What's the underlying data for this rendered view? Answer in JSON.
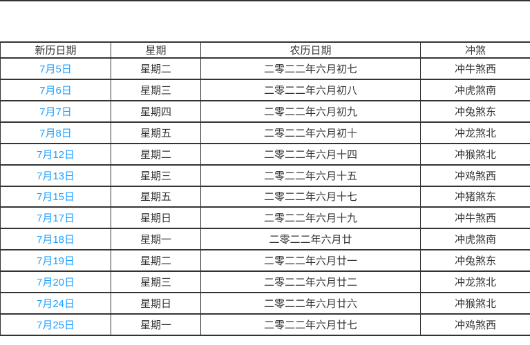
{
  "colors": {
    "accent": "#1e9fff",
    "text": "#333333",
    "border": "#333333",
    "background": "#ffffff"
  },
  "chart_data": {
    "type": "table",
    "title": "",
    "columns": [
      "新历日期",
      "星期",
      "农历日期",
      "冲煞"
    ],
    "rows": [
      [
        "7月5日",
        "星期二",
        "二零二二年六月初七",
        "冲牛煞西"
      ],
      [
        "7月6日",
        "星期三",
        "二零二二年六月初八",
        "冲虎煞南"
      ],
      [
        "7月7日",
        "星期四",
        "二零二二年六月初九",
        "冲兔煞东"
      ],
      [
        "7月8日",
        "星期五",
        "二零二二年六月初十",
        "冲龙煞北"
      ],
      [
        "7月12日",
        "星期二",
        "二零二二年六月十四",
        "冲猴煞北"
      ],
      [
        "7月13日",
        "星期三",
        "二零二二年六月十五",
        "冲鸡煞西"
      ],
      [
        "7月15日",
        "星期五",
        "二零二二年六月十七",
        "冲猪煞东"
      ],
      [
        "7月17日",
        "星期日",
        "二零二二年六月十九",
        "冲牛煞西"
      ],
      [
        "7月18日",
        "星期一",
        "二零二二年六月廿",
        "冲虎煞南"
      ],
      [
        "7月19日",
        "星期二",
        "二零二二年六月廿一",
        "冲兔煞东"
      ],
      [
        "7月20日",
        "星期三",
        "二零二二年六月廿二",
        "冲龙煞北"
      ],
      [
        "7月24日",
        "星期日",
        "二零二二年六月廿六",
        "冲猴煞北"
      ],
      [
        "7月25日",
        "星期一",
        "二零二二年六月廿七",
        "冲鸡煞西"
      ]
    ]
  }
}
